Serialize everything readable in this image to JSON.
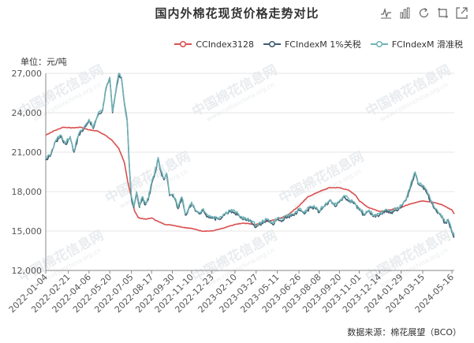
{
  "title": "国内外棉花现货价格走势对比",
  "toolbox": [
    {
      "name": "line-chart-icon"
    },
    {
      "name": "bar-chart-icon"
    },
    {
      "name": "restore-icon"
    },
    {
      "name": "data-view-icon"
    },
    {
      "name": "save-image-icon"
    }
  ],
  "unit_label": "单位：元/吨",
  "source_label": "数据来源：棉花展望（BCO）",
  "colors": {
    "cc": "#d94f4f",
    "fc1": "#3e5a6e",
    "fc2": "#6fb3b6",
    "grid": "#e6e6e6",
    "axis_text": "#555555",
    "watermark": "#e9ecef"
  },
  "chart_data": {
    "type": "line",
    "x_ticks": [
      "2022-01-04",
      "2022-02-21",
      "2022-04-06",
      "2022-05-20",
      "2022-07-05",
      "2022-08-17",
      "2022-09-30",
      "2022-11-10",
      "2022-12-23",
      "2023-02-10",
      "2023-03-27",
      "2023-05-11",
      "2023-06-26",
      "2023-08-08",
      "2023-09-20",
      "2023-11-01",
      "2023-12-14",
      "2024-01-29",
      "2024-03-15",
      "2024-05-16"
    ],
    "y_ticks": [
      "12,000",
      "15,000",
      "18,000",
      "21,000",
      "24,000",
      "27,000"
    ],
    "ylim": [
      12000,
      27000
    ],
    "xlim": [
      "2022-01-04",
      "2024-05-21"
    ],
    "series": [
      {
        "name": "CCIndex3128",
        "points": [
          [
            "2022-01-04",
            22300
          ],
          [
            "2022-01-20",
            22600
          ],
          [
            "2022-02-10",
            22900
          ],
          [
            "2022-03-01",
            22850
          ],
          [
            "2022-03-20",
            22900
          ],
          [
            "2022-04-06",
            22700
          ],
          [
            "2022-04-25",
            22600
          ],
          [
            "2022-05-10",
            22300
          ],
          [
            "2022-05-25",
            21900
          ],
          [
            "2022-06-08",
            21300
          ],
          [
            "2022-06-20",
            20200
          ],
          [
            "2022-06-27",
            18800
          ],
          [
            "2022-07-05",
            17600
          ],
          [
            "2022-07-12",
            16500
          ],
          [
            "2022-07-20",
            16000
          ],
          [
            "2022-08-05",
            15900
          ],
          [
            "2022-08-17",
            16000
          ],
          [
            "2022-09-01",
            15700
          ],
          [
            "2022-09-15",
            15500
          ],
          [
            "2022-09-30",
            15450
          ],
          [
            "2022-10-20",
            15300
          ],
          [
            "2022-11-10",
            15200
          ],
          [
            "2022-12-01",
            15000
          ],
          [
            "2022-12-23",
            15000
          ],
          [
            "2023-01-15",
            15200
          ],
          [
            "2023-02-10",
            15500
          ],
          [
            "2023-03-01",
            15600
          ],
          [
            "2023-03-27",
            15500
          ],
          [
            "2023-04-15",
            15700
          ],
          [
            "2023-05-11",
            15900
          ],
          [
            "2023-06-01",
            16200
          ],
          [
            "2023-06-26",
            16900
          ],
          [
            "2023-07-15",
            17600
          ],
          [
            "2023-08-08",
            18000
          ],
          [
            "2023-08-30",
            18300
          ],
          [
            "2023-09-20",
            18300
          ],
          [
            "2023-10-10",
            18100
          ],
          [
            "2023-10-25",
            17700
          ],
          [
            "2023-11-01",
            17300
          ],
          [
            "2023-11-20",
            16800
          ],
          [
            "2023-12-14",
            16500
          ],
          [
            "2024-01-05",
            16600
          ],
          [
            "2024-01-29",
            16800
          ],
          [
            "2024-02-20",
            17100
          ],
          [
            "2024-03-15",
            17300
          ],
          [
            "2024-04-05",
            17200
          ],
          [
            "2024-04-25",
            17000
          ],
          [
            "2024-05-16",
            16600
          ],
          [
            "2024-05-21",
            16300
          ]
        ]
      },
      {
        "name": "FCIndexM 1%关税",
        "points": [
          [
            "2022-01-04",
            20400
          ],
          [
            "2022-01-15",
            20800
          ],
          [
            "2022-01-25",
            21800
          ],
          [
            "2022-02-05",
            22200
          ],
          [
            "2022-02-15",
            21600
          ],
          [
            "2022-02-25",
            22100
          ],
          [
            "2022-03-05",
            21000
          ],
          [
            "2022-03-15",
            22300
          ],
          [
            "2022-03-25",
            22700
          ],
          [
            "2022-04-06",
            23400
          ],
          [
            "2022-04-15",
            22800
          ],
          [
            "2022-04-25",
            23800
          ],
          [
            "2022-05-05",
            24200
          ],
          [
            "2022-05-12",
            25800
          ],
          [
            "2022-05-20",
            26600
          ],
          [
            "2022-05-26",
            24000
          ],
          [
            "2022-06-02",
            25600
          ],
          [
            "2022-06-08",
            26900
          ],
          [
            "2022-06-14",
            26600
          ],
          [
            "2022-06-20",
            24700
          ],
          [
            "2022-06-26",
            23400
          ],
          [
            "2022-07-01",
            19700
          ],
          [
            "2022-07-05",
            17500
          ],
          [
            "2022-07-10",
            16800
          ],
          [
            "2022-07-16",
            17900
          ],
          [
            "2022-07-22",
            16800
          ],
          [
            "2022-07-28",
            17500
          ],
          [
            "2022-08-04",
            17000
          ],
          [
            "2022-08-10",
            17400
          ],
          [
            "2022-08-17",
            18600
          ],
          [
            "2022-08-24",
            19400
          ],
          [
            "2022-08-31",
            20500
          ],
          [
            "2022-09-06",
            19500
          ],
          [
            "2022-09-12",
            18900
          ],
          [
            "2022-09-18",
            19300
          ],
          [
            "2022-09-24",
            17700
          ],
          [
            "2022-09-30",
            17700
          ],
          [
            "2022-10-06",
            17400
          ],
          [
            "2022-10-12",
            16700
          ],
          [
            "2022-10-20",
            17500
          ],
          [
            "2022-10-28",
            16200
          ],
          [
            "2022-11-05",
            16800
          ],
          [
            "2022-11-10",
            17100
          ],
          [
            "2022-11-18",
            16500
          ],
          [
            "2022-11-26",
            16300
          ],
          [
            "2022-12-05",
            16600
          ],
          [
            "2022-12-14",
            16100
          ],
          [
            "2022-12-23",
            16000
          ],
          [
            "2023-01-05",
            15900
          ],
          [
            "2023-01-18",
            16200
          ],
          [
            "2023-01-30",
            16500
          ],
          [
            "2023-02-10",
            16400
          ],
          [
            "2023-02-22",
            16000
          ],
          [
            "2023-03-06",
            15800
          ],
          [
            "2023-03-17",
            15700
          ],
          [
            "2023-03-27",
            15300
          ],
          [
            "2023-04-08",
            15600
          ],
          [
            "2023-04-20",
            15800
          ],
          [
            "2023-05-01",
            15500
          ],
          [
            "2023-05-11",
            15900
          ],
          [
            "2023-05-22",
            15800
          ],
          [
            "2023-06-02",
            16100
          ],
          [
            "2023-06-14",
            16200
          ],
          [
            "2023-06-26",
            16600
          ],
          [
            "2023-07-08",
            16300
          ],
          [
            "2023-07-20",
            16800
          ],
          [
            "2023-08-01",
            16700
          ],
          [
            "2023-08-08",
            16400
          ],
          [
            "2023-08-20",
            16900
          ],
          [
            "2023-09-01",
            17300
          ],
          [
            "2023-09-10",
            16900
          ],
          [
            "2023-09-20",
            17200
          ],
          [
            "2023-10-01",
            17600
          ],
          [
            "2023-10-12",
            17200
          ],
          [
            "2023-10-22",
            17100
          ],
          [
            "2023-11-01",
            16600
          ],
          [
            "2023-11-12",
            16200
          ],
          [
            "2023-11-22",
            16500
          ],
          [
            "2023-12-02",
            16100
          ],
          [
            "2023-12-14",
            16200
          ],
          [
            "2023-12-26",
            16500
          ],
          [
            "2024-01-08",
            16400
          ],
          [
            "2024-01-18",
            16600
          ],
          [
            "2024-01-29",
            16800
          ],
          [
            "2024-02-08",
            17300
          ],
          [
            "2024-02-16",
            18100
          ],
          [
            "2024-02-22",
            18800
          ],
          [
            "2024-02-28",
            19400
          ],
          [
            "2024-03-05",
            18600
          ],
          [
            "2024-03-15",
            18400
          ],
          [
            "2024-03-25",
            17800
          ],
          [
            "2024-04-03",
            17100
          ],
          [
            "2024-04-12",
            16600
          ],
          [
            "2024-04-22",
            16200
          ],
          [
            "2024-05-01",
            15600
          ],
          [
            "2024-05-08",
            15800
          ],
          [
            "2024-05-14",
            15200
          ],
          [
            "2024-05-21",
            14500
          ]
        ]
      },
      {
        "name": "FCIndexM 滑准税",
        "points": [
          [
            "2022-01-04",
            20500
          ],
          [
            "2022-01-15",
            20900
          ],
          [
            "2022-01-25",
            21900
          ],
          [
            "2022-02-05",
            22300
          ],
          [
            "2022-02-15",
            21700
          ],
          [
            "2022-02-25",
            22200
          ],
          [
            "2022-03-05",
            21100
          ],
          [
            "2022-03-15",
            22400
          ],
          [
            "2022-03-25",
            22800
          ],
          [
            "2022-04-06",
            23500
          ],
          [
            "2022-04-15",
            22900
          ],
          [
            "2022-04-25",
            23900
          ],
          [
            "2022-05-05",
            24300
          ],
          [
            "2022-05-12",
            25900
          ],
          [
            "2022-05-20",
            26700
          ],
          [
            "2022-05-26",
            24100
          ],
          [
            "2022-06-02",
            25700
          ],
          [
            "2022-06-08",
            27000
          ],
          [
            "2022-06-14",
            26700
          ],
          [
            "2022-06-20",
            24800
          ],
          [
            "2022-06-26",
            23500
          ],
          [
            "2022-07-01",
            19800
          ],
          [
            "2022-07-05",
            17600
          ],
          [
            "2022-07-10",
            16900
          ],
          [
            "2022-07-16",
            18000
          ],
          [
            "2022-07-22",
            16900
          ],
          [
            "2022-07-28",
            17600
          ],
          [
            "2022-08-04",
            17100
          ],
          [
            "2022-08-10",
            17500
          ],
          [
            "2022-08-17",
            18700
          ],
          [
            "2022-08-24",
            19500
          ],
          [
            "2022-08-31",
            20600
          ],
          [
            "2022-09-06",
            19600
          ],
          [
            "2022-09-12",
            19000
          ],
          [
            "2022-09-18",
            19400
          ],
          [
            "2022-09-24",
            17800
          ],
          [
            "2022-09-30",
            17800
          ],
          [
            "2022-10-06",
            17500
          ],
          [
            "2022-10-12",
            16800
          ],
          [
            "2022-10-20",
            17600
          ],
          [
            "2022-10-28",
            16300
          ],
          [
            "2022-11-05",
            16900
          ],
          [
            "2022-11-10",
            17200
          ],
          [
            "2022-11-18",
            16600
          ],
          [
            "2022-11-26",
            16400
          ],
          [
            "2022-12-05",
            16700
          ],
          [
            "2022-12-14",
            16200
          ],
          [
            "2022-12-23",
            16100
          ],
          [
            "2023-01-05",
            16000
          ],
          [
            "2023-01-18",
            16300
          ],
          [
            "2023-01-30",
            16600
          ],
          [
            "2023-02-10",
            16500
          ],
          [
            "2023-02-22",
            16100
          ],
          [
            "2023-03-06",
            15900
          ],
          [
            "2023-03-17",
            15800
          ],
          [
            "2023-03-27",
            15400
          ],
          [
            "2023-04-08",
            15700
          ],
          [
            "2023-04-20",
            15900
          ],
          [
            "2023-05-01",
            15600
          ],
          [
            "2023-05-11",
            16000
          ],
          [
            "2023-05-22",
            15900
          ],
          [
            "2023-06-02",
            16200
          ],
          [
            "2023-06-14",
            16300
          ],
          [
            "2023-06-26",
            16700
          ],
          [
            "2023-07-08",
            16400
          ],
          [
            "2023-07-20",
            16900
          ],
          [
            "2023-08-01",
            16800
          ],
          [
            "2023-08-08",
            16500
          ],
          [
            "2023-08-20",
            17000
          ],
          [
            "2023-09-01",
            17400
          ],
          [
            "2023-09-10",
            17000
          ],
          [
            "2023-09-20",
            17300
          ],
          [
            "2023-10-01",
            17700
          ],
          [
            "2023-10-12",
            17300
          ],
          [
            "2023-10-22",
            17200
          ],
          [
            "2023-11-01",
            16700
          ],
          [
            "2023-11-12",
            16300
          ],
          [
            "2023-11-22",
            16600
          ],
          [
            "2023-12-02",
            16200
          ],
          [
            "2023-12-14",
            16300
          ],
          [
            "2023-12-26",
            16600
          ],
          [
            "2024-01-08",
            16500
          ],
          [
            "2024-01-18",
            16700
          ],
          [
            "2024-01-29",
            16900
          ],
          [
            "2024-02-08",
            17400
          ],
          [
            "2024-02-16",
            18200
          ],
          [
            "2024-02-22",
            18900
          ],
          [
            "2024-02-28",
            19500
          ],
          [
            "2024-03-05",
            18700
          ],
          [
            "2024-03-15",
            18500
          ],
          [
            "2024-03-25",
            17900
          ],
          [
            "2024-04-03",
            17200
          ],
          [
            "2024-04-12",
            16700
          ],
          [
            "2024-04-22",
            16300
          ],
          [
            "2024-05-01",
            15700
          ],
          [
            "2024-05-08",
            15900
          ],
          [
            "2024-05-14",
            15300
          ],
          [
            "2024-05-21",
            14600
          ]
        ]
      }
    ],
    "grid": true,
    "legend_position": "top-right"
  },
  "watermark_text": "中国棉花信息网",
  "watermark_url": "www.cottonchina.org.cn"
}
